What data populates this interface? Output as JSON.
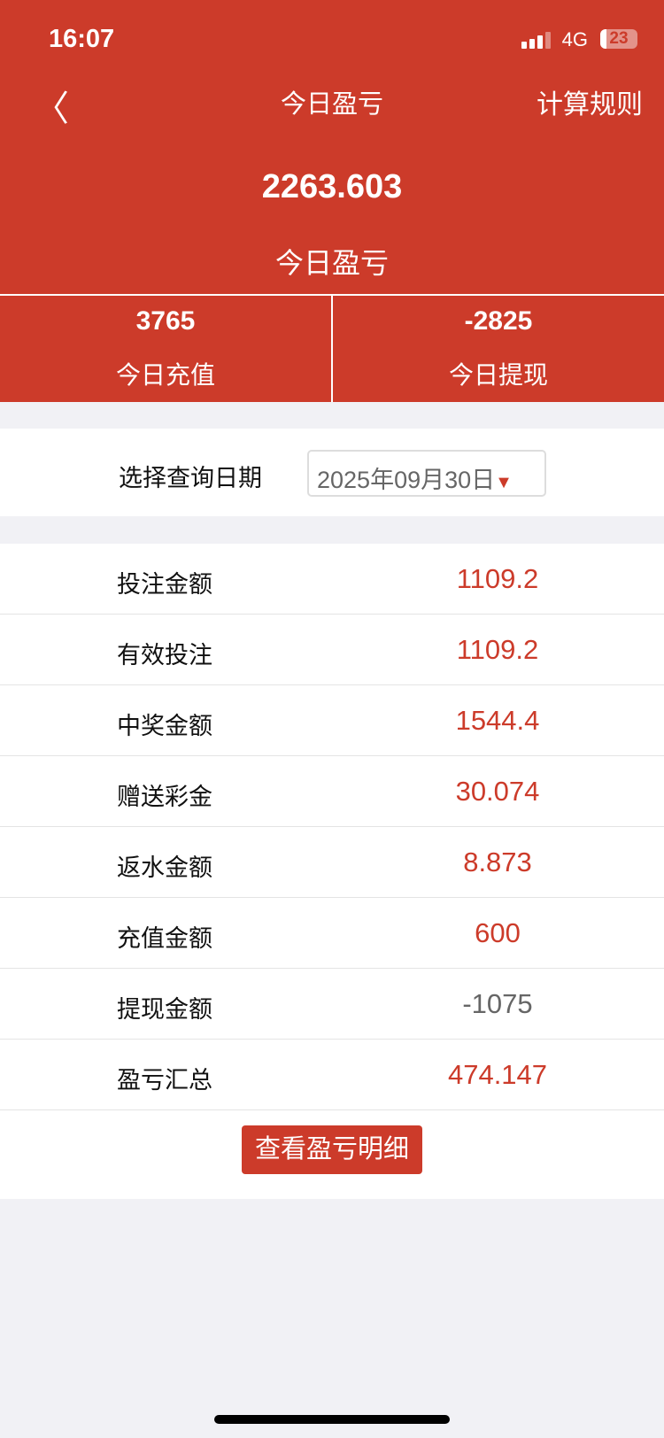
{
  "status": {
    "time": "16:07",
    "network": "4G",
    "battery": "23"
  },
  "nav": {
    "back_icon": "chevron-left-icon",
    "title": "今日盈亏",
    "rule_link": "计算规则"
  },
  "summary": {
    "value": "2263.603",
    "label": "今日盈亏"
  },
  "stats": [
    {
      "value": "3765",
      "label": "今日充值"
    },
    {
      "value": "-2825",
      "label": "今日提现"
    }
  ],
  "date": {
    "label": "选择查询日期",
    "value": "2025年09月30日",
    "arrow": "▼"
  },
  "rows": [
    {
      "label": "投注金额",
      "value": "1109.2"
    },
    {
      "label": "有效投注",
      "value": "1109.2"
    },
    {
      "label": "中奖金额",
      "value": "1544.4"
    },
    {
      "label": "赠送彩金",
      "value": "30.074"
    },
    {
      "label": "返水金额",
      "value": "8.873"
    },
    {
      "label": "充值金额",
      "value": "600"
    },
    {
      "label": "提现金额",
      "value": "-1075"
    },
    {
      "label": "盈亏汇总",
      "value": "474.147"
    }
  ],
  "detail_button": "查看盈亏明细",
  "colors": {
    "accent": "#cc3b2a",
    "negative": "#666666"
  }
}
